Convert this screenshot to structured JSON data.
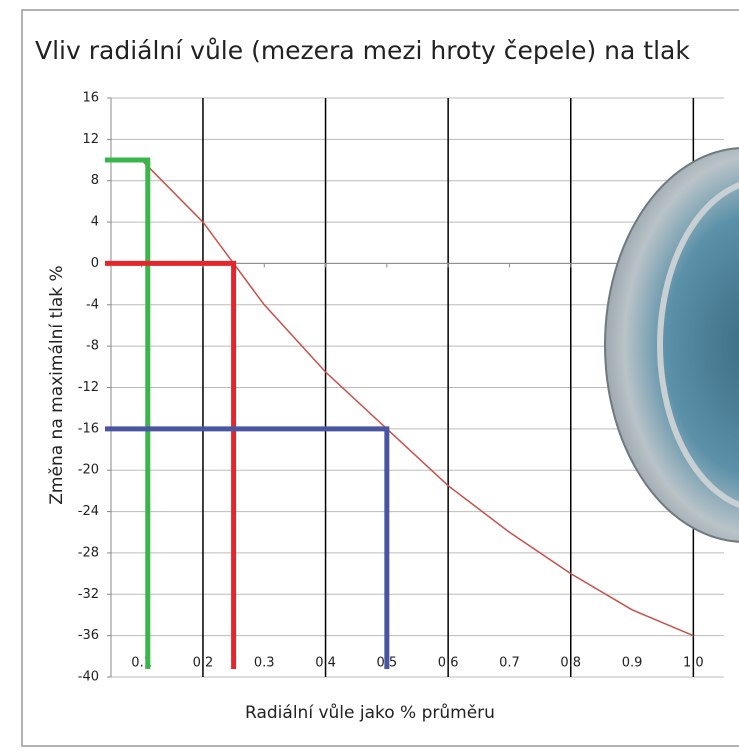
{
  "chart_data": {
    "type": "line",
    "title": "Vliv radiální vůle (mezera mezi hroty čepele) na tlak",
    "x_label": "Radiální vůle jako % průměru",
    "y_label": "Změna na maximální tlak %",
    "x": [
      0.1,
      0.2,
      0.25,
      0.3,
      0.4,
      0.5,
      0.6,
      0.7,
      0.8,
      0.9,
      1.0
    ],
    "series": [
      {
        "color": "#c9504a",
        "values": [
          10,
          4,
          0,
          -4,
          -10.5,
          -16,
          -21.5,
          -26,
          -30,
          -33.5,
          -36
        ]
      }
    ],
    "xlim": [
      0.05,
      1.05
    ],
    "ylim": [
      -40,
      16
    ],
    "xticks": [
      0.1,
      0.2,
      0.3,
      0.4,
      0.5,
      0.6,
      0.7,
      0.8,
      0.9,
      {
        "value": 1,
        "label": "1.0"
      }
    ],
    "yticks": [
      -40,
      -36,
      -32,
      -28,
      -24,
      -20,
      -16,
      -12,
      -8,
      -4,
      0,
      4,
      8,
      12,
      16
    ],
    "x_gridlines": [
      0.2,
      0.4,
      0.6,
      0.8,
      1
    ],
    "markers": [
      {
        "x": 0.11,
        "y": 10,
        "color": "#3ab54a"
      },
      {
        "x": 0.25,
        "y": 0,
        "color": "#e3262c"
      },
      {
        "x": 0.5,
        "y": -16,
        "color": "#4a55a2"
      }
    ],
    "grid": true
  }
}
